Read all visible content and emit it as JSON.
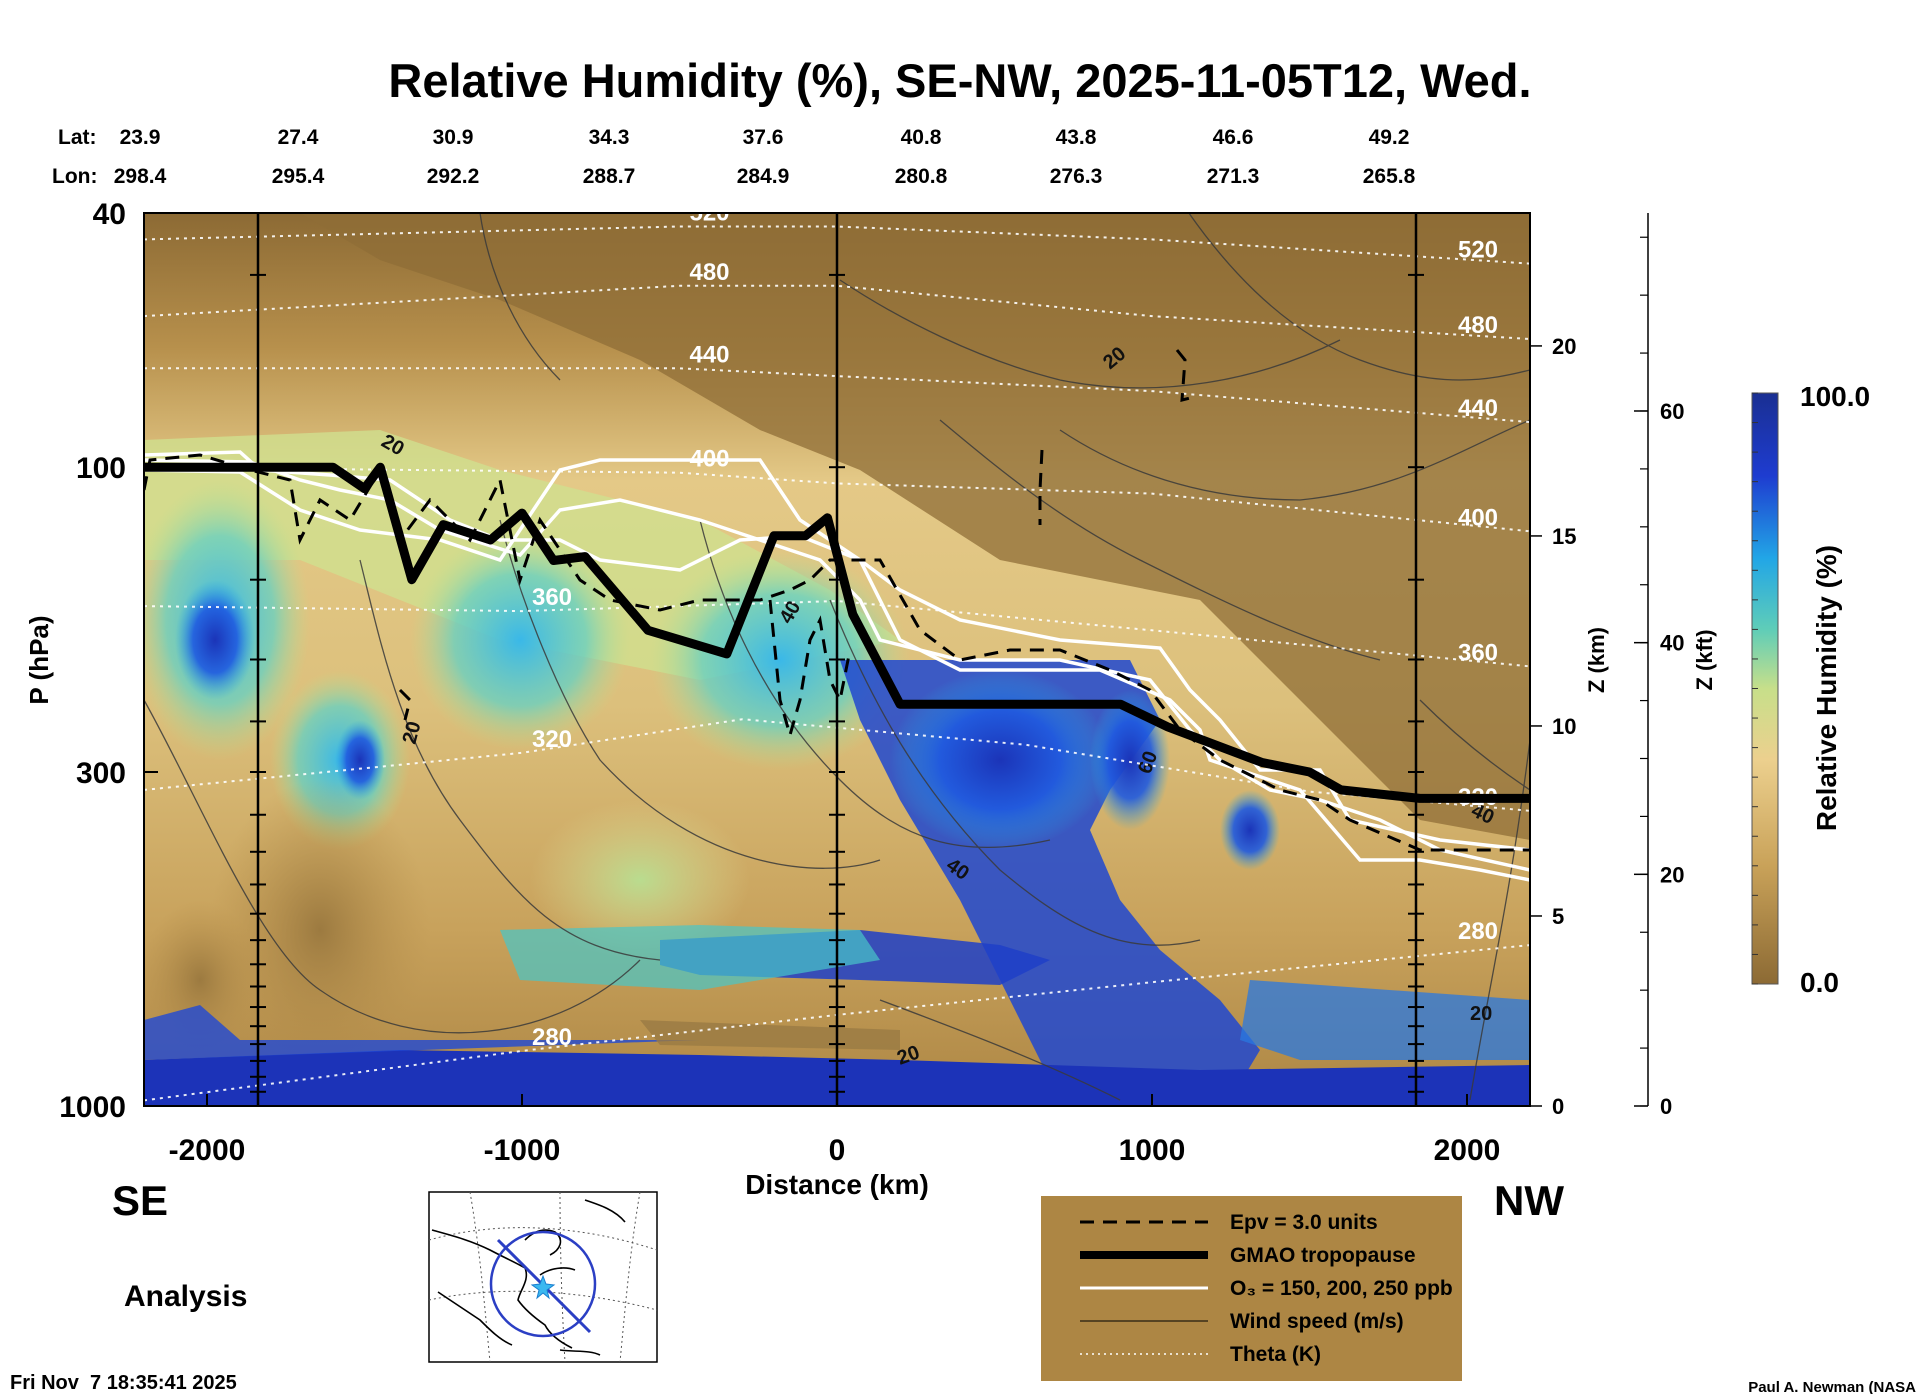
{
  "chart_data": {
    "type": "heatmap",
    "title": "Relative Humidity (%), SE-NW, 2025-11-05T12, Wed.",
    "xlabel": "Distance (km)",
    "ylabel": "P (hPa)",
    "z_label": "Z (km)",
    "zf_label": "Z (kft)",
    "colorbar_label": "Relative Humidity (%)",
    "colorbar_range": [
      0.0,
      100.0
    ],
    "colorbar_max_label": "100.0",
    "colorbar_min_label": "0.0",
    "xlim": [
      -2200,
      2200
    ],
    "ylim": [
      1000,
      40
    ],
    "x_ticks": [
      -2000,
      -1000,
      0,
      1000,
      2000
    ],
    "x_tick_labels": [
      "-2000",
      "-1000",
      "0",
      "1000",
      "2000"
    ],
    "p_ticks": [
      40,
      100,
      300,
      1000
    ],
    "p_tick_labels": [
      "40",
      "100",
      "300",
      "1000"
    ],
    "z_km_ticks": [
      "0",
      "5",
      "10",
      "15",
      "20"
    ],
    "z_kft_ticks": [
      "0",
      "20",
      "40",
      "60"
    ],
    "lat_label": "Lat:",
    "lon_label": "Lon:",
    "lat": [
      "23.9",
      "27.4",
      "30.9",
      "34.3",
      "37.6",
      "40.8",
      "43.8",
      "46.6",
      "49.2"
    ],
    "lon": [
      "298.4",
      "295.4",
      "292.2",
      "288.7",
      "284.9",
      "280.8",
      "276.3",
      "271.3",
      "265.8"
    ],
    "tropopause": [
      [
        -2200,
        100
      ],
      [
        -1600,
        100
      ],
      [
        -1500,
        108
      ],
      [
        -1450,
        100
      ],
      [
        -1350,
        150
      ],
      [
        -1250,
        123
      ],
      [
        -1100,
        130
      ],
      [
        -1000,
        118
      ],
      [
        -900,
        140
      ],
      [
        -800,
        138
      ],
      [
        -600,
        180
      ],
      [
        -350,
        196
      ],
      [
        -200,
        128
      ],
      [
        -100,
        128
      ],
      [
        -30,
        120
      ],
      [
        50,
        170
      ],
      [
        200,
        235
      ],
      [
        900,
        235
      ],
      [
        1050,
        255
      ],
      [
        1350,
        290
      ],
      [
        1500,
        300
      ],
      [
        1600,
        320
      ],
      [
        1850,
        330
      ],
      [
        2200,
        330
      ]
    ],
    "theta_levels": [
      {
        "label": "520",
        "points": [
          [
            -2200,
            44
          ],
          [
            -500,
            42
          ],
          [
            0,
            42
          ],
          [
            1000,
            44
          ],
          [
            2200,
            48
          ]
        ]
      },
      {
        "label": "480",
        "points": [
          [
            -2200,
            58
          ],
          [
            -500,
            52
          ],
          [
            0,
            52
          ],
          [
            1000,
            58
          ],
          [
            2200,
            63
          ]
        ]
      },
      {
        "label": "440",
        "points": [
          [
            -2200,
            70
          ],
          [
            -500,
            70
          ],
          [
            0,
            72
          ],
          [
            1000,
            76
          ],
          [
            2200,
            85
          ]
        ]
      },
      {
        "label": "400",
        "points": [
          [
            -2200,
            100
          ],
          [
            -500,
            102
          ],
          [
            0,
            106
          ],
          [
            1000,
            110
          ],
          [
            2200,
            126
          ]
        ]
      },
      {
        "label": "360",
        "points": [
          [
            -2200,
            165
          ],
          [
            -1000,
            168
          ],
          [
            0,
            162
          ],
          [
            1000,
            180
          ],
          [
            2200,
            205
          ]
        ]
      },
      {
        "label": "320",
        "points": [
          [
            -2200,
            320
          ],
          [
            -1000,
            280
          ],
          [
            -300,
            248
          ],
          [
            600,
            272
          ],
          [
            1500,
            322
          ],
          [
            2200,
            345
          ]
        ]
      },
      {
        "label": "280",
        "points": [
          [
            -2200,
            980
          ],
          [
            -1000,
            820
          ],
          [
            0,
            720
          ],
          [
            1000,
            640
          ],
          [
            2200,
            560
          ]
        ]
      }
    ],
    "theta_contour_labels": [
      "520",
      "480",
      "440",
      "400",
      "360",
      "320",
      "280"
    ],
    "wind_contour_labels": [
      "20",
      "40",
      "60"
    ],
    "legend_items": [
      {
        "style": "dashed",
        "label": "Epv = 3.0 units"
      },
      {
        "style": "thick",
        "label": "GMAO tropopause"
      },
      {
        "style": "white",
        "label": "O₃ = 150, 200, 250 ppb"
      },
      {
        "style": "thin",
        "label": "Wind speed (m/s)"
      },
      {
        "style": "dotted",
        "label": "Theta (K)"
      }
    ],
    "direction_left": "SE",
    "direction_right": "NW"
  },
  "footer": {
    "analysis_label": "Analysis",
    "timestamp": "Fri Nov  7 18:35:41 2025",
    "credit": "Paul A. Newman (NASA"
  }
}
